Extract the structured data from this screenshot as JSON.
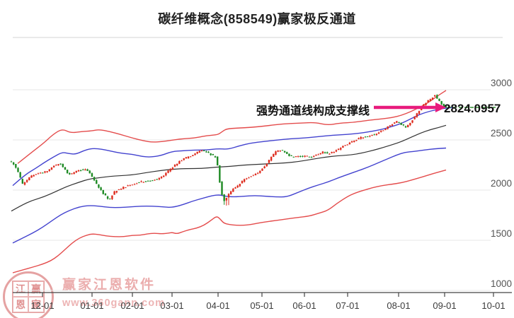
{
  "title": "碳纤维概念(858549)赢家极反通道",
  "annotation": {
    "text": "强势通道线构成支撑线",
    "price_label": "2824.0957"
  },
  "watermark": {
    "brand": "赢家江恩软件",
    "url": "www.360gann.com",
    "seal_chars": [
      "江",
      "赢",
      "恩",
      "家"
    ]
  },
  "colors": {
    "candle_up": "#de2c1e",
    "candle_down": "#1e8a24",
    "channel_red": "#e44c4c",
    "channel_blue": "#4343cf",
    "channel_mid": "#333333",
    "last_price_line": "#067806",
    "arrow": "#e81b7c",
    "grid": "#e7e7e7",
    "axis": "#444444",
    "tick_text": "#555555"
  },
  "chart_data": {
    "type": "candlestick",
    "title": "碳纤维概念(858549)赢家极反通道",
    "x_ticks": [
      "12-01",
      "01-01",
      "02-01",
      "03-01",
      "04-01",
      "05-01",
      "06-01",
      "07-01",
      "08-01",
      "09-01",
      "10-01"
    ],
    "y_ticks": [
      "3000",
      "2500",
      "2000",
      "1500",
      "1000"
    ],
    "ylim": [
      1000,
      3500
    ],
    "grid": true,
    "last_price": 2824.0957,
    "annotation_text": "强势通道线构成支撑线",
    "price_path": [
      [
        16,
        2290
      ],
      [
        22,
        2260
      ],
      [
        28,
        2190
      ],
      [
        35,
        2060
      ],
      [
        42,
        2110
      ],
      [
        50,
        2150
      ],
      [
        62,
        2175
      ],
      [
        72,
        2195
      ],
      [
        80,
        2245
      ],
      [
        88,
        2270
      ],
      [
        95,
        2200
      ],
      [
        100,
        2150
      ],
      [
        108,
        2180
      ],
      [
        118,
        2200
      ],
      [
        126,
        2205
      ],
      [
        132,
        2150
      ],
      [
        140,
        2050
      ],
      [
        148,
        1975
      ],
      [
        157,
        1900
      ],
      [
        165,
        1985
      ],
      [
        175,
        2020
      ],
      [
        187,
        2050
      ],
      [
        200,
        2080
      ],
      [
        213,
        2090
      ],
      [
        225,
        2110
      ],
      [
        235,
        2150
      ],
      [
        243,
        2205
      ],
      [
        252,
        2260
      ],
      [
        262,
        2310
      ],
      [
        272,
        2340
      ],
      [
        282,
        2380
      ],
      [
        290,
        2395
      ],
      [
        298,
        2365
      ],
      [
        305,
        2340
      ],
      [
        309,
        2320
      ],
      [
        312,
        2150
      ],
      [
        316,
        1965
      ],
      [
        320,
        1895
      ],
      [
        324,
        1935
      ],
      [
        330,
        1995
      ],
      [
        338,
        2040
      ],
      [
        348,
        2105
      ],
      [
        358,
        2140
      ],
      [
        370,
        2185
      ],
      [
        378,
        2245
      ],
      [
        386,
        2330
      ],
      [
        394,
        2390
      ],
      [
        402,
        2395
      ],
      [
        410,
        2350
      ],
      [
        418,
        2330
      ],
      [
        426,
        2335
      ],
      [
        434,
        2340
      ],
      [
        442,
        2325
      ],
      [
        452,
        2360
      ],
      [
        460,
        2380
      ],
      [
        468,
        2360
      ],
      [
        476,
        2390
      ],
      [
        484,
        2420
      ],
      [
        491,
        2450
      ],
      [
        500,
        2480
      ],
      [
        508,
        2510
      ],
      [
        516,
        2530
      ],
      [
        524,
        2540
      ],
      [
        532,
        2555
      ],
      [
        540,
        2580
      ],
      [
        548,
        2615
      ],
      [
        556,
        2655
      ],
      [
        563,
        2685
      ],
      [
        570,
        2650
      ],
      [
        576,
        2630
      ],
      [
        582,
        2670
      ],
      [
        588,
        2720
      ],
      [
        594,
        2780
      ],
      [
        600,
        2840
      ],
      [
        606,
        2880
      ],
      [
        612,
        2915
      ],
      [
        617,
        2945
      ],
      [
        621,
        2905
      ],
      [
        625,
        2870
      ],
      [
        628,
        2850
      ],
      [
        631,
        2824
      ]
    ],
    "crash_low": 1838,
    "channel_lines": [
      {
        "name": "upper-outer-red",
        "color_key": "channel_red",
        "points": [
          [
            25,
            2265
          ],
          [
            45,
            2378
          ],
          [
            62,
            2470
          ],
          [
            75,
            2555
          ],
          [
            88,
            2611
          ],
          [
            100,
            2569
          ],
          [
            115,
            2583
          ],
          [
            130,
            2590
          ],
          [
            140,
            2604
          ],
          [
            155,
            2583
          ],
          [
            170,
            2555
          ],
          [
            187,
            2519
          ],
          [
            203,
            2491
          ],
          [
            215,
            2477
          ],
          [
            230,
            2484
          ],
          [
            243,
            2498
          ],
          [
            258,
            2512
          ],
          [
            275,
            2519
          ],
          [
            290,
            2540
          ],
          [
            300,
            2547
          ],
          [
            308,
            2554
          ],
          [
            314,
            2583
          ],
          [
            320,
            2611
          ],
          [
            335,
            2618
          ],
          [
            355,
            2625
          ],
          [
            375,
            2639
          ],
          [
            400,
            2661
          ],
          [
            425,
            2668
          ],
          [
            445,
            2675
          ],
          [
            463,
            2647
          ],
          [
            480,
            2668
          ],
          [
            500,
            2675
          ],
          [
            520,
            2696
          ],
          [
            540,
            2710
          ],
          [
            555,
            2724
          ],
          [
            567,
            2745
          ],
          [
            580,
            2781
          ],
          [
            592,
            2823
          ],
          [
            602,
            2858
          ],
          [
            612,
            2908
          ],
          [
            622,
            2957
          ],
          [
            630,
            2993
          ]
        ]
      },
      {
        "name": "upper-inner-blue",
        "color_key": "channel_blue",
        "points": [
          [
            18,
            2045
          ],
          [
            35,
            2151
          ],
          [
            50,
            2215
          ],
          [
            62,
            2272
          ],
          [
            75,
            2328
          ],
          [
            88,
            2378
          ],
          [
            97,
            2364
          ],
          [
            107,
            2357
          ],
          [
            118,
            2392
          ],
          [
            128,
            2413
          ],
          [
            138,
            2413
          ],
          [
            150,
            2399
          ],
          [
            163,
            2378
          ],
          [
            175,
            2364
          ],
          [
            187,
            2357
          ],
          [
            200,
            2336
          ],
          [
            212,
            2328
          ],
          [
            227,
            2343
          ],
          [
            243,
            2385
          ],
          [
            258,
            2392
          ],
          [
            275,
            2399
          ],
          [
            292,
            2399
          ],
          [
            308,
            2413
          ],
          [
            322,
            2406
          ],
          [
            338,
            2441
          ],
          [
            355,
            2470
          ],
          [
            372,
            2484
          ],
          [
            390,
            2498
          ],
          [
            410,
            2512
          ],
          [
            430,
            2519
          ],
          [
            450,
            2533
          ],
          [
            470,
            2547
          ],
          [
            490,
            2554
          ],
          [
            510,
            2568
          ],
          [
            528,
            2589
          ],
          [
            543,
            2611
          ],
          [
            556,
            2639
          ],
          [
            568,
            2667
          ],
          [
            580,
            2710
          ],
          [
            592,
            2752
          ],
          [
            604,
            2780
          ],
          [
            616,
            2801
          ],
          [
            628,
            2816
          ],
          [
            640,
            2823
          ]
        ]
      },
      {
        "name": "middle-black",
        "color_key": "channel_mid",
        "points": [
          [
            16,
            1791
          ],
          [
            30,
            1847
          ],
          [
            45,
            1897
          ],
          [
            62,
            1932
          ],
          [
            80,
            1989
          ],
          [
            95,
            2038
          ],
          [
            110,
            2074
          ],
          [
            125,
            2109
          ],
          [
            140,
            2123
          ],
          [
            155,
            2137
          ],
          [
            170,
            2144
          ],
          [
            187,
            2151
          ],
          [
            205,
            2172
          ],
          [
            225,
            2193
          ],
          [
            243,
            2208
          ],
          [
            262,
            2215
          ],
          [
            285,
            2215
          ],
          [
            305,
            2229
          ],
          [
            325,
            2236
          ],
          [
            345,
            2250
          ],
          [
            365,
            2257
          ],
          [
            385,
            2264
          ],
          [
            405,
            2271
          ],
          [
            422,
            2285
          ],
          [
            440,
            2306
          ],
          [
            458,
            2327
          ],
          [
            476,
            2342
          ],
          [
            495,
            2349
          ],
          [
            512,
            2370
          ],
          [
            528,
            2398
          ],
          [
            542,
            2426
          ],
          [
            555,
            2455
          ],
          [
            567,
            2483
          ],
          [
            580,
            2525
          ],
          [
            594,
            2568
          ],
          [
            608,
            2603
          ],
          [
            620,
            2624
          ],
          [
            630,
            2646
          ]
        ]
      },
      {
        "name": "lower-inner-blue",
        "color_key": "channel_blue",
        "points": [
          [
            18,
            1473
          ],
          [
            32,
            1522
          ],
          [
            46,
            1571
          ],
          [
            60,
            1628
          ],
          [
            74,
            1698
          ],
          [
            86,
            1755
          ],
          [
            98,
            1797
          ],
          [
            112,
            1833
          ],
          [
            126,
            1847
          ],
          [
            140,
            1840
          ],
          [
            155,
            1826
          ],
          [
            170,
            1826
          ],
          [
            185,
            1833
          ],
          [
            200,
            1840
          ],
          [
            215,
            1840
          ],
          [
            230,
            1833
          ],
          [
            243,
            1826
          ],
          [
            258,
            1854
          ],
          [
            272,
            1890
          ],
          [
            286,
            1918
          ],
          [
            300,
            1946
          ],
          [
            310,
            1953
          ],
          [
            318,
            1939
          ],
          [
            330,
            1932
          ],
          [
            345,
            1939
          ],
          [
            360,
            1946
          ],
          [
            375,
            1939
          ],
          [
            390,
            1932
          ],
          [
            405,
            1932
          ],
          [
            420,
            1974
          ],
          [
            435,
            2017
          ],
          [
            450,
            2052
          ],
          [
            463,
            2080
          ],
          [
            478,
            2123
          ],
          [
            492,
            2158
          ],
          [
            506,
            2193
          ],
          [
            520,
            2229
          ],
          [
            534,
            2271
          ],
          [
            548,
            2313
          ],
          [
            560,
            2349
          ],
          [
            572,
            2377
          ],
          [
            584,
            2384
          ],
          [
            598,
            2398
          ],
          [
            614,
            2412
          ],
          [
            630,
            2419
          ]
        ]
      },
      {
        "name": "lower-outer-red",
        "color_key": "channel_red",
        "points": [
          [
            18,
            1176
          ],
          [
            32,
            1204
          ],
          [
            46,
            1232
          ],
          [
            60,
            1261
          ],
          [
            72,
            1296
          ],
          [
            82,
            1345
          ],
          [
            92,
            1409
          ],
          [
            102,
            1473
          ],
          [
            112,
            1522
          ],
          [
            122,
            1550
          ],
          [
            130,
            1564
          ],
          [
            140,
            1557
          ],
          [
            150,
            1543
          ],
          [
            162,
            1536
          ],
          [
            175,
            1536
          ],
          [
            187,
            1550
          ],
          [
            198,
            1550
          ],
          [
            208,
            1564
          ],
          [
            218,
            1571
          ],
          [
            228,
            1564
          ],
          [
            238,
            1571
          ],
          [
            243,
            1578
          ],
          [
            250,
            1564
          ],
          [
            258,
            1585
          ],
          [
            268,
            1607
          ],
          [
            278,
            1621
          ],
          [
            288,
            1649
          ],
          [
            298,
            1698
          ],
          [
            306,
            1741
          ],
          [
            311,
            1712
          ],
          [
            316,
            1670
          ],
          [
            324,
            1656
          ],
          [
            334,
            1649
          ],
          [
            344,
            1649
          ],
          [
            354,
            1656
          ],
          [
            364,
            1670
          ],
          [
            376,
            1684
          ],
          [
            390,
            1698
          ],
          [
            405,
            1712
          ],
          [
            420,
            1727
          ],
          [
            437,
            1741
          ],
          [
            450,
            1769
          ],
          [
            463,
            1797
          ],
          [
            476,
            1868
          ],
          [
            490,
            1932
          ],
          [
            500,
            1967
          ],
          [
            512,
            1995
          ],
          [
            526,
            2024
          ],
          [
            540,
            2045
          ],
          [
            554,
            2059
          ],
          [
            567,
            2073
          ],
          [
            582,
            2101
          ],
          [
            596,
            2130
          ],
          [
            612,
            2165
          ],
          [
            630,
            2200
          ]
        ]
      }
    ]
  }
}
